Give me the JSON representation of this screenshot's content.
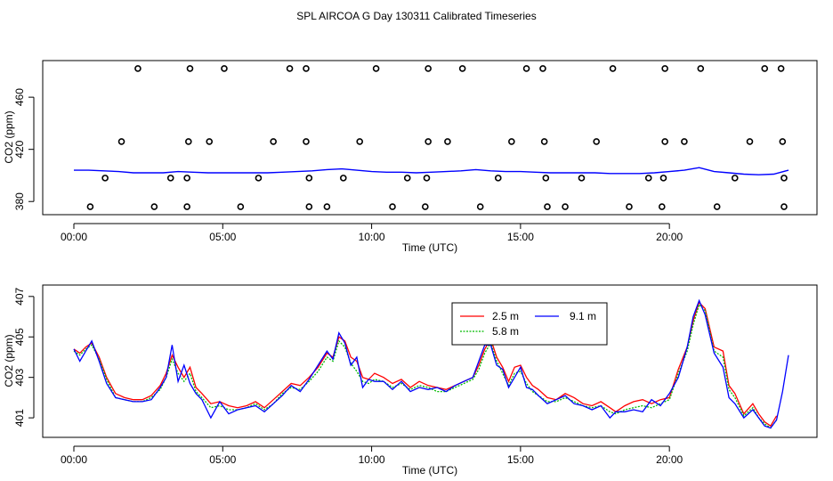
{
  "title": "SPL AIRCOA G  Day 130311  Calibrated Timeseries",
  "colors": {
    "s1": "#ff0000",
    "s2": "#00cc00",
    "s3": "#0000ff",
    "axis": "#000000"
  },
  "chart_data": [
    {
      "type": "scatter",
      "xlabel": "Time (UTC)",
      "ylabel": "CO2 (ppm)",
      "xlim": [
        0,
        24
      ],
      "ylim": [
        374,
        484
      ],
      "xticks": [
        {
          "v": 0,
          "label": "00:00"
        },
        {
          "v": 5,
          "label": "05:00"
        },
        {
          "v": 10,
          "label": "10:00"
        },
        {
          "v": 15,
          "label": "15:00"
        },
        {
          "v": 20,
          "label": "20:00"
        }
      ],
      "yticks": [
        {
          "v": 380,
          "label": "380"
        },
        {
          "v": 420,
          "label": "420"
        },
        {
          "v": 460,
          "label": "460"
        }
      ],
      "points": [
        {
          "x": 2.15,
          "y": 482
        },
        {
          "x": 3.9,
          "y": 482
        },
        {
          "x": 5.05,
          "y": 482
        },
        {
          "x": 7.25,
          "y": 482
        },
        {
          "x": 7.8,
          "y": 482
        },
        {
          "x": 10.15,
          "y": 482
        },
        {
          "x": 11.9,
          "y": 482
        },
        {
          "x": 13.05,
          "y": 482
        },
        {
          "x": 15.2,
          "y": 482
        },
        {
          "x": 15.75,
          "y": 482
        },
        {
          "x": 18.1,
          "y": 482
        },
        {
          "x": 19.85,
          "y": 482
        },
        {
          "x": 21.05,
          "y": 482
        },
        {
          "x": 23.2,
          "y": 482
        },
        {
          "x": 23.75,
          "y": 482
        },
        {
          "x": 1.6,
          "y": 426
        },
        {
          "x": 3.85,
          "y": 426
        },
        {
          "x": 4.55,
          "y": 426
        },
        {
          "x": 6.7,
          "y": 426
        },
        {
          "x": 7.8,
          "y": 426
        },
        {
          "x": 9.6,
          "y": 426
        },
        {
          "x": 11.9,
          "y": 426
        },
        {
          "x": 12.55,
          "y": 426
        },
        {
          "x": 14.7,
          "y": 426
        },
        {
          "x": 15.8,
          "y": 426
        },
        {
          "x": 17.55,
          "y": 426
        },
        {
          "x": 19.85,
          "y": 426
        },
        {
          "x": 20.5,
          "y": 426
        },
        {
          "x": 22.7,
          "y": 426
        },
        {
          "x": 23.8,
          "y": 426
        },
        {
          "x": 1.05,
          "y": 398
        },
        {
          "x": 3.25,
          "y": 398
        },
        {
          "x": 3.8,
          "y": 398
        },
        {
          "x": 6.2,
          "y": 398
        },
        {
          "x": 7.9,
          "y": 398
        },
        {
          "x": 9.05,
          "y": 398
        },
        {
          "x": 11.2,
          "y": 398
        },
        {
          "x": 11.85,
          "y": 398
        },
        {
          "x": 14.25,
          "y": 398
        },
        {
          "x": 15.85,
          "y": 398
        },
        {
          "x": 17.05,
          "y": 398
        },
        {
          "x": 19.3,
          "y": 398
        },
        {
          "x": 19.8,
          "y": 398
        },
        {
          "x": 22.2,
          "y": 398
        },
        {
          "x": 23.85,
          "y": 398
        },
        {
          "x": 0.55,
          "y": 376
        },
        {
          "x": 2.7,
          "y": 376
        },
        {
          "x": 3.8,
          "y": 376
        },
        {
          "x": 5.6,
          "y": 376
        },
        {
          "x": 7.9,
          "y": 376
        },
        {
          "x": 8.5,
          "y": 376
        },
        {
          "x": 10.7,
          "y": 376
        },
        {
          "x": 11.8,
          "y": 376
        },
        {
          "x": 13.65,
          "y": 376
        },
        {
          "x": 15.9,
          "y": 376
        },
        {
          "x": 16.5,
          "y": 376
        },
        {
          "x": 18.65,
          "y": 376
        },
        {
          "x": 19.75,
          "y": 376
        },
        {
          "x": 21.6,
          "y": 376
        },
        {
          "x": 23.85,
          "y": 376
        }
      ],
      "line": {
        "x": [
          0,
          0.5,
          1,
          1.5,
          2,
          2.5,
          3,
          3.5,
          4,
          4.5,
          5,
          5.5,
          6,
          6.5,
          7,
          7.5,
          8,
          8.5,
          9,
          9.5,
          10,
          10.5,
          11,
          11.5,
          12,
          12.5,
          13,
          13.5,
          14,
          14.5,
          15,
          15.5,
          16,
          16.5,
          17,
          17.5,
          18,
          18.5,
          19,
          19.5,
          20,
          20.5,
          21,
          21.5,
          22,
          22.5,
          23,
          23.5,
          24
        ],
        "y": [
          404,
          404,
          403.5,
          403,
          402,
          402,
          402,
          403,
          402.5,
          402,
          402,
          402,
          402,
          402,
          402.5,
          403,
          403.5,
          404.5,
          405,
          404,
          403,
          402.5,
          402.5,
          402,
          402.5,
          403,
          403.5,
          404.5,
          403.5,
          403,
          403,
          402.5,
          402,
          402,
          402,
          402,
          401.5,
          401.5,
          401.5,
          402,
          403,
          404,
          406,
          403,
          402,
          401,
          400.5,
          401,
          404
        ]
      }
    },
    {
      "type": "line",
      "xlabel": "Time (UTC)",
      "ylabel": "CO2 (ppm)",
      "xlim": [
        0,
        24
      ],
      "ylim": [
        400.3,
        407.3
      ],
      "xticks": [
        {
          "v": 0,
          "label": "00:00"
        },
        {
          "v": 5,
          "label": "05:00"
        },
        {
          "v": 10,
          "label": "10:00"
        },
        {
          "v": 15,
          "label": "15:00"
        },
        {
          "v": 20,
          "label": "20:00"
        }
      ],
      "yticks": [
        {
          "v": 401,
          "label": "401"
        },
        {
          "v": 403,
          "label": "403"
        },
        {
          "v": 405,
          "label": "405"
        },
        {
          "v": 407,
          "label": "407"
        }
      ],
      "legend_position": "top-center",
      "series": [
        {
          "name": "2.5 m",
          "color": "#ff0000",
          "dash": "",
          "x": [
            0,
            0.2,
            0.4,
            0.6,
            0.85,
            1.1,
            1.4,
            1.7,
            2.0,
            2.3,
            2.6,
            2.9,
            3.1,
            3.3,
            3.5,
            3.7,
            3.9,
            4.1,
            4.3,
            4.6,
            4.9,
            5.2,
            5.5,
            5.8,
            6.1,
            6.4,
            6.7,
            7.0,
            7.3,
            7.6,
            7.9,
            8.2,
            8.5,
            8.7,
            8.9,
            9.1,
            9.3,
            9.5,
            9.7,
            9.9,
            10.1,
            10.4,
            10.7,
            11.0,
            11.3,
            11.6,
            11.9,
            12.2,
            12.5,
            12.8,
            13.1,
            13.4,
            13.6,
            13.8,
            14.0,
            14.2,
            14.4,
            14.6,
            14.8,
            15.0,
            15.2,
            15.4,
            15.6,
            15.9,
            16.2,
            16.5,
            16.8,
            17.1,
            17.4,
            17.7,
            18.0,
            18.2,
            18.5,
            18.8,
            19.1,
            19.4,
            19.7,
            20.0,
            20.3,
            20.6,
            20.8,
            21.0,
            21.2,
            21.5,
            21.8,
            22.0,
            22.2,
            22.5,
            22.8,
            23.0,
            23.2,
            23.4,
            23.6
          ],
          "y": [
            404.4,
            404.2,
            404.5,
            404.7,
            404.0,
            403.0,
            402.2,
            402.0,
            401.9,
            401.9,
            402.1,
            402.6,
            403.2,
            404.1,
            403.5,
            403.0,
            403.5,
            402.5,
            402.2,
            401.7,
            401.8,
            401.6,
            401.5,
            401.6,
            401.8,
            401.5,
            401.9,
            402.3,
            402.7,
            402.6,
            403.0,
            403.5,
            404.2,
            404.0,
            405.0,
            404.8,
            404.0,
            403.8,
            403.0,
            402.9,
            403.2,
            403.0,
            402.7,
            402.9,
            402.5,
            402.8,
            402.6,
            402.5,
            402.4,
            402.6,
            402.8,
            403.0,
            403.6,
            404.4,
            404.9,
            404.0,
            403.5,
            402.8,
            403.5,
            403.6,
            403.0,
            402.6,
            402.4,
            402.0,
            401.9,
            402.2,
            402.0,
            401.7,
            401.6,
            401.8,
            401.5,
            401.3,
            401.6,
            401.8,
            401.9,
            401.7,
            401.9,
            402.0,
            403.4,
            404.5,
            405.8,
            406.7,
            406.4,
            404.5,
            404.3,
            402.6,
            402.2,
            401.2,
            401.7,
            401.2,
            400.8,
            400.6,
            401.1
          ]
        },
        {
          "name": "5.8 m",
          "color": "#00bb00",
          "dash": "2,1.5",
          "x": [
            0,
            0.2,
            0.4,
            0.6,
            0.85,
            1.1,
            1.4,
            1.7,
            2.0,
            2.3,
            2.6,
            2.9,
            3.1,
            3.3,
            3.5,
            3.7,
            3.9,
            4.1,
            4.3,
            4.6,
            4.9,
            5.2,
            5.5,
            5.8,
            6.1,
            6.4,
            6.7,
            7.0,
            7.3,
            7.6,
            7.9,
            8.2,
            8.5,
            8.7,
            8.9,
            9.1,
            9.3,
            9.5,
            9.7,
            9.9,
            10.1,
            10.4,
            10.7,
            11.0,
            11.3,
            11.6,
            11.9,
            12.2,
            12.5,
            12.8,
            13.1,
            13.4,
            13.6,
            13.8,
            14.0,
            14.2,
            14.4,
            14.6,
            14.8,
            15.0,
            15.2,
            15.4,
            15.6,
            15.9,
            16.2,
            16.5,
            16.8,
            17.1,
            17.4,
            17.7,
            18.0,
            18.2,
            18.5,
            18.8,
            19.1,
            19.4,
            19.7,
            20.0,
            20.3,
            20.6,
            20.8,
            21.0,
            21.2,
            21.5,
            21.8,
            22.0,
            22.2,
            22.5,
            22.8,
            23.0,
            23.2,
            23.4,
            23.6
          ],
          "y": [
            404.3,
            404.1,
            404.4,
            404.6,
            403.9,
            402.9,
            402.0,
            401.9,
            401.8,
            401.8,
            402.0,
            402.4,
            403.0,
            403.9,
            403.2,
            402.8,
            403.2,
            402.3,
            402.0,
            401.5,
            401.6,
            401.4,
            401.4,
            401.5,
            401.7,
            401.4,
            401.7,
            402.2,
            402.5,
            402.4,
            402.8,
            403.3,
            404.0,
            403.8,
            404.8,
            404.5,
            403.7,
            403.3,
            402.8,
            402.7,
            402.9,
            402.8,
            402.5,
            402.7,
            402.4,
            402.6,
            402.5,
            402.3,
            402.3,
            402.5,
            402.7,
            402.9,
            403.4,
            404.2,
            404.7,
            403.8,
            403.2,
            402.6,
            403.2,
            403.3,
            402.7,
            402.3,
            402.1,
            401.8,
            401.8,
            402.0,
            401.8,
            401.6,
            401.5,
            401.6,
            401.3,
            401.2,
            401.4,
            401.5,
            401.6,
            401.5,
            401.7,
            401.9,
            403.2,
            404.3,
            405.6,
            406.6,
            406.3,
            404.3,
            404.0,
            402.4,
            402.0,
            401.1,
            401.5,
            401.0,
            400.7,
            400.5,
            400.9
          ]
        },
        {
          "name": "9.1 m",
          "color": "#0000ff",
          "dash": "",
          "x": [
            0,
            0.2,
            0.4,
            0.6,
            0.85,
            1.1,
            1.4,
            1.7,
            2.0,
            2.3,
            2.6,
            2.9,
            3.1,
            3.3,
            3.5,
            3.7,
            3.9,
            4.1,
            4.3,
            4.6,
            4.9,
            5.2,
            5.5,
            5.8,
            6.1,
            6.4,
            6.7,
            7.0,
            7.3,
            7.6,
            7.9,
            8.2,
            8.5,
            8.7,
            8.9,
            9.1,
            9.3,
            9.5,
            9.7,
            9.9,
            10.1,
            10.4,
            10.7,
            11.0,
            11.3,
            11.6,
            11.9,
            12.2,
            12.5,
            12.8,
            13.1,
            13.4,
            13.6,
            13.8,
            14.0,
            14.2,
            14.4,
            14.6,
            14.8,
            15.0,
            15.2,
            15.4,
            15.6,
            15.9,
            16.2,
            16.5,
            16.8,
            17.1,
            17.4,
            17.7,
            18.0,
            18.2,
            18.5,
            18.8,
            19.1,
            19.4,
            19.7,
            20.0,
            20.3,
            20.6,
            20.8,
            21.0,
            21.2,
            21.5,
            21.8,
            22.0,
            22.2,
            22.5,
            22.8,
            23.0,
            23.2,
            23.4,
            23.6,
            23.8,
            24.0
          ],
          "y": [
            404.4,
            403.8,
            404.3,
            404.8,
            403.8,
            402.7,
            402.0,
            401.9,
            401.8,
            401.8,
            401.9,
            402.5,
            403.0,
            404.6,
            402.8,
            403.6,
            402.7,
            402.2,
            401.9,
            401.0,
            401.8,
            401.2,
            401.4,
            401.5,
            401.6,
            401.3,
            401.7,
            402.1,
            402.6,
            402.3,
            402.9,
            403.6,
            404.3,
            403.9,
            405.2,
            404.7,
            403.6,
            404.0,
            402.5,
            402.9,
            402.8,
            402.8,
            402.4,
            402.8,
            402.3,
            402.5,
            402.4,
            402.5,
            402.3,
            402.6,
            402.8,
            403.0,
            403.8,
            404.6,
            404.6,
            403.6,
            403.4,
            402.5,
            403.0,
            403.5,
            402.5,
            402.4,
            402.1,
            401.7,
            401.9,
            402.1,
            401.7,
            401.6,
            401.4,
            401.6,
            401.0,
            401.3,
            401.3,
            401.4,
            401.3,
            401.9,
            401.6,
            402.2,
            403.0,
            404.5,
            406.0,
            406.8,
            406.1,
            404.2,
            403.5,
            402.0,
            401.7,
            401.0,
            401.4,
            401.0,
            400.6,
            400.5,
            400.9,
            402.3,
            404.1
          ]
        }
      ]
    }
  ]
}
